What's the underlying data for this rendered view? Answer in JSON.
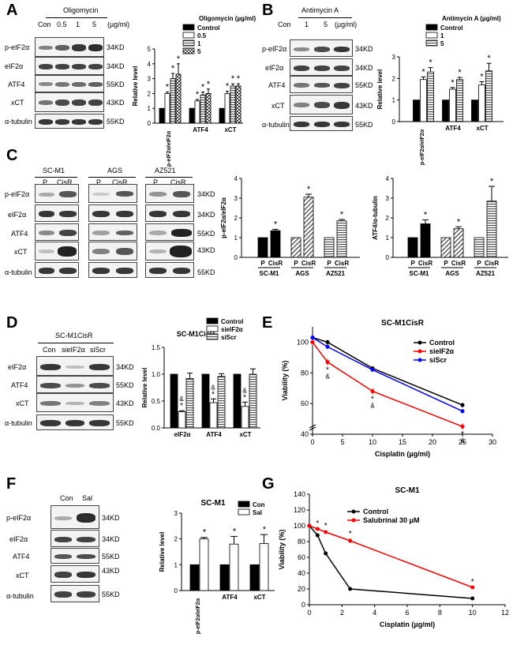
{
  "panels": {
    "A": {
      "letter": "A",
      "treatment": "Oligomycin",
      "lanes": [
        "Con",
        "0.5",
        "1",
        "5"
      ],
      "unit": "(µg/ml)",
      "rows": [
        "p-eIF2α",
        "eIF2α",
        "ATF4",
        "xCT",
        "α-tubulin"
      ],
      "kd": [
        "34KD",
        "34KD",
        "55KD",
        "43KD",
        "55KD"
      ]
    },
    "B": {
      "letter": "B",
      "treatment": "Antimycin A",
      "lanes": [
        "Con",
        "1",
        "5"
      ],
      "unit": "(µg/ml)",
      "rows": [
        "p-eIF2α",
        "eIF2α",
        "ATF4",
        "xCT",
        "α-tubulin"
      ],
      "kd": [
        "34KD",
        "34KD",
        "55KD",
        "43KD",
        "55KD"
      ]
    },
    "C": {
      "letter": "C",
      "groups": [
        "SC-M1",
        "AGS",
        "AZ521"
      ],
      "lanes": [
        "P",
        "CisR"
      ],
      "rows": [
        "p-eIF2α",
        "eIF2α",
        "ATF4",
        "xCT",
        "α-tubulin"
      ],
      "kd": [
        "34KD",
        "34KD",
        "55KD",
        "43KD",
        "55KD"
      ]
    },
    "D": {
      "letter": "D",
      "title": "SC-M1CisR",
      "lanes": [
        "Con",
        "sieIF2α",
        "siScr"
      ],
      "rows": [
        "eIF2α",
        "ATF4",
        "xCT",
        "α-tubulin"
      ],
      "kd": [
        "34KD",
        "55KD",
        "43KD",
        "55KD"
      ]
    },
    "E": {
      "letter": "E"
    },
    "F": {
      "letter": "F",
      "lanes": [
        "Con",
        "Sal"
      ],
      "rows": [
        "p-eIF2α",
        "eIF2α",
        "ATF4",
        "xCT",
        "α-tubulin"
      ],
      "kd": [
        "34KD",
        "34KD",
        "55KD",
        "43KD",
        "55KD"
      ]
    },
    "G": {
      "letter": "G"
    }
  },
  "colors": {
    "black": "#000000",
    "red": "#ff0000",
    "blue": "#0000ff",
    "gray": "#999999"
  },
  "chart_data": [
    {
      "id": "A",
      "type": "bar",
      "categories": [
        "p-eIF2α/eIF2α",
        "ATF4",
        "xCT"
      ],
      "series": [
        {
          "name": "Control",
          "values": [
            1,
            1,
            1
          ],
          "err": [
            0,
            0,
            0
          ],
          "fill": "black"
        },
        {
          "name": "0.5",
          "values": [
            2.0,
            1.5,
            2.0
          ],
          "err": [
            0.1,
            0.1,
            0.15
          ],
          "fill": "white"
        },
        {
          "name": "1",
          "values": [
            3.0,
            1.9,
            2.5
          ],
          "err": [
            0.35,
            0.2,
            0.15
          ],
          "fill": "gray"
        },
        {
          "name": "5",
          "values": [
            3.3,
            2.0,
            2.5
          ],
          "err": [
            0.7,
            0.3,
            0.15
          ],
          "fill": "check"
        }
      ],
      "stars": [
        [
          false,
          true,
          true,
          true
        ],
        [
          false,
          true,
          true,
          true
        ],
        [
          false,
          true,
          true,
          true
        ]
      ],
      "ylabel": "Relative level",
      "ylim": [
        0,
        5
      ],
      "yticks": [
        0,
        1,
        2,
        3,
        4,
        5
      ],
      "legend_title": "Oligomycin (µg/ml)"
    },
    {
      "id": "B",
      "type": "bar",
      "categories": [
        "p-eIF2α/eIF2α",
        "ATF4",
        "xCT"
      ],
      "series": [
        {
          "name": "Control",
          "values": [
            1,
            1,
            1
          ],
          "err": [
            0,
            0,
            0
          ],
          "fill": "black"
        },
        {
          "name": "1",
          "values": [
            1.95,
            1.5,
            1.7
          ],
          "err": [
            0.12,
            0.08,
            0.15
          ],
          "fill": "white"
        },
        {
          "name": "5",
          "values": [
            2.3,
            1.95,
            2.35
          ],
          "err": [
            0.2,
            0.1,
            0.35
          ],
          "fill": "gray"
        }
      ],
      "stars": [
        [
          false,
          true,
          true
        ],
        [
          false,
          true,
          true
        ],
        [
          false,
          true,
          true
        ]
      ],
      "ylabel": "Relative level",
      "ylim": [
        0,
        3
      ],
      "yticks": [
        0,
        1,
        2,
        3
      ],
      "legend_title": "Antimycin A (µg/ml)"
    },
    {
      "id": "C1",
      "type": "bar",
      "groups": [
        "SC-M1",
        "AGS",
        "AZ521"
      ],
      "lanes": [
        "P",
        "CisR"
      ],
      "values": [
        [
          1,
          1.35
        ],
        [
          1,
          3.05
        ],
        [
          1,
          1.85
        ]
      ],
      "err": [
        [
          0,
          0.07
        ],
        [
          0,
          0.15
        ],
        [
          0,
          0.07
        ]
      ],
      "ylabel": "p-eIF2α/eIF2α",
      "ylim": [
        0,
        4
      ],
      "yticks": [
        0,
        1,
        2,
        3,
        4
      ]
    },
    {
      "id": "C2",
      "type": "bar",
      "groups": [
        "SC-M1",
        "AGS",
        "AZ521"
      ],
      "lanes": [
        "P",
        "CisR"
      ],
      "values": [
        [
          1,
          1.7
        ],
        [
          1,
          1.45
        ],
        [
          1,
          2.85
        ]
      ],
      "err": [
        [
          0,
          0.2
        ],
        [
          0,
          0.1
        ],
        [
          0,
          0.75
        ]
      ],
      "ylabel": "ATF4/α-tubulin",
      "ylim": [
        0,
        4
      ],
      "yticks": [
        0,
        1,
        2,
        3,
        4
      ]
    },
    {
      "id": "D",
      "type": "bar",
      "title": "SC-M1CisR",
      "categories": [
        "eIF2α",
        "ATF4",
        "xCT"
      ],
      "series": [
        {
          "name": "Control",
          "values": [
            1,
            1,
            1
          ],
          "err": [
            0,
            0,
            0
          ],
          "fill": "black"
        },
        {
          "name": "sieIF2α",
          "values": [
            0.3,
            0.47,
            0.4
          ],
          "err": [
            0.02,
            0.07,
            0.08
          ],
          "fill": "white"
        },
        {
          "name": "siScr",
          "values": [
            0.92,
            0.96,
            1.0
          ],
          "err": [
            0.1,
            0.05,
            0.1
          ],
          "fill": "gray"
        }
      ],
      "ylabel": "Relative level",
      "ylim": [
        0,
        1.5
      ],
      "yticks": [
        0.0,
        0.5,
        1.0,
        1.5
      ]
    },
    {
      "id": "E",
      "type": "line",
      "title": "SC-M1CisR",
      "x": [
        0,
        2.5,
        10,
        25
      ],
      "series": [
        {
          "name": "Control",
          "color": "#000000",
          "values": [
            103,
            100,
            83,
            59
          ],
          "err": [
            1.5,
            1.5,
            1,
            1.5
          ]
        },
        {
          "name": "sieIF2α",
          "color": "#ff0000",
          "values": [
            100,
            87,
            68,
            45
          ],
          "err": [
            2,
            2,
            2,
            2
          ]
        },
        {
          "name": "siScr",
          "color": "#0000ff",
          "values": [
            103,
            97,
            82,
            55
          ],
          "err": [
            1.5,
            1.5,
            1,
            1.5
          ]
        }
      ],
      "xlabel": "Cisplatin (µg/ml)",
      "ylabel": "Viability (%)",
      "xlim": [
        0,
        30
      ],
      "xticks": [
        0,
        5,
        10,
        15,
        20,
        25,
        30
      ],
      "ylim": [
        40,
        110
      ],
      "yticks": [
        40,
        60,
        80,
        100
      ],
      "marks": [
        {
          "x": 2.5,
          "text": "*"
        },
        {
          "x": 2.5,
          "text": "&"
        },
        {
          "x": 10,
          "text": "*"
        },
        {
          "x": 10,
          "text": "&"
        },
        {
          "x": 25,
          "text": "*"
        },
        {
          "x": 25,
          "text": "&"
        }
      ]
    },
    {
      "id": "F",
      "type": "bar",
      "title": "SC-M1",
      "categories": [
        "p-eIF2α/eIF2α",
        "ATF4",
        "xCT"
      ],
      "series": [
        {
          "name": "Con",
          "values": [
            1,
            1,
            1
          ],
          "err": [
            0,
            0,
            0
          ],
          "fill": "black"
        },
        {
          "name": "Sal",
          "values": [
            2.0,
            1.8,
            1.82
          ],
          "err": [
            0.06,
            0.3,
            0.35
          ],
          "fill": "white"
        }
      ],
      "ylabel": "Relative level",
      "ylim": [
        0,
        3
      ],
      "yticks": [
        0,
        1,
        2,
        3
      ]
    },
    {
      "id": "G",
      "type": "line",
      "title": "SC-M1",
      "x": [
        0,
        0.5,
        1,
        2.5,
        10
      ],
      "series": [
        {
          "name": "Control",
          "color": "#000000",
          "values": [
            100,
            88,
            65,
            20,
            8
          ],
          "err": [
            0,
            0,
            0,
            0,
            0
          ]
        },
        {
          "name": "Salubrinal 30 μM",
          "color": "#ff0000",
          "values": [
            100,
            96,
            92,
            81,
            22
          ],
          "err": [
            1,
            1,
            2,
            3,
            1
          ]
        }
      ],
      "xlabel": "Cisplatin (µg/ml)",
      "ylabel": "Viability (%)",
      "xlim": [
        0,
        12
      ],
      "xticks": [
        0,
        2,
        4,
        6,
        8,
        10,
        12
      ],
      "ylim": [
        0,
        140
      ],
      "yticks": [
        0,
        20,
        40,
        60,
        80,
        100,
        120,
        140
      ]
    }
  ]
}
